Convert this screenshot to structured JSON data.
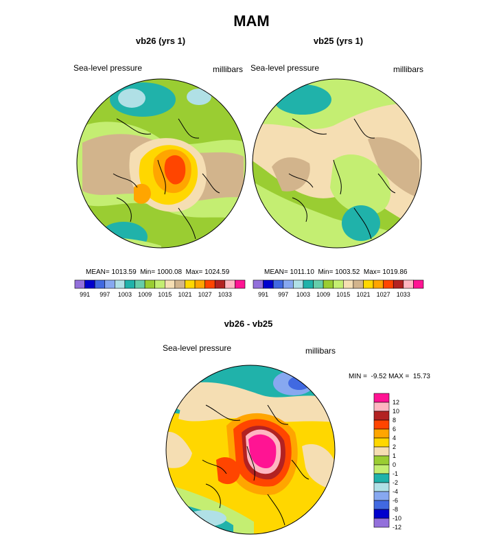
{
  "page": {
    "title": "MAM",
    "variable_label": "Sea-level pressure",
    "units_label": "millibars"
  },
  "palette": {
    "abs": [
      "#9370db",
      "#0000cd",
      "#4169e1",
      "#87a8f0",
      "#b0e0e6",
      "#20b2aa",
      "#66cdaa",
      "#9acd32",
      "#c4ee72",
      "#f5deb3",
      "#d2b48c",
      "#ffd700",
      "#ffa500",
      "#ff4500",
      "#b22222",
      "#ffb6c1",
      "#ff1493"
    ],
    "diff": [
      "#9370db",
      "#0000cd",
      "#4169e1",
      "#87a8f0",
      "#b0e0e6",
      "#20b2aa",
      "#c4ee72",
      "#9acd32",
      "#f5deb3",
      "#ffd700",
      "#ffa500",
      "#ff4500",
      "#b22222",
      "#ffb6c1",
      "#ff1493"
    ]
  },
  "chart_data": [
    {
      "type": "heatmap",
      "projection": "polar-stereographic",
      "title": "vb26 (yrs 1)",
      "label_left": "Sea-level pressure",
      "label_right": "millibars",
      "stats_text": "MEAN= 1013.59  Min= 1000.08  Max= 1024.59",
      "mean": 1013.59,
      "min": 1000.08,
      "max": 1024.59,
      "colorbar": {
        "orientation": "horizontal",
        "tick_labels": [
          "991",
          "997",
          "1003",
          "1009",
          "1015",
          "1021",
          "1027",
          "1033"
        ]
      }
    },
    {
      "type": "heatmap",
      "projection": "polar-stereographic",
      "title": "vb25 (yrs 1)",
      "label_left": "Sea-level pressure",
      "label_right": "millibars",
      "stats_text": "MEAN= 1011.10  Min= 1003.52  Max= 1019.86",
      "mean": 1011.1,
      "min": 1003.52,
      "max": 1019.86,
      "colorbar": {
        "orientation": "horizontal",
        "tick_labels": [
          "991",
          "997",
          "1003",
          "1009",
          "1015",
          "1021",
          "1027",
          "1033"
        ]
      }
    },
    {
      "type": "heatmap",
      "projection": "polar-stereographic",
      "title": "vb26 - vb25",
      "label_left": "Sea-level pressure",
      "label_right": "millibars",
      "stats_text": "MIN =  -9.52 MAX =  15.73",
      "min": -9.52,
      "max": 15.73,
      "colorbar": {
        "orientation": "vertical",
        "tick_labels": [
          "12",
          "10",
          "8",
          "6",
          "4",
          "2",
          "1",
          "0",
          "-1",
          "-2",
          "-4",
          "-6",
          "-8",
          "-10",
          "-12"
        ]
      }
    }
  ]
}
